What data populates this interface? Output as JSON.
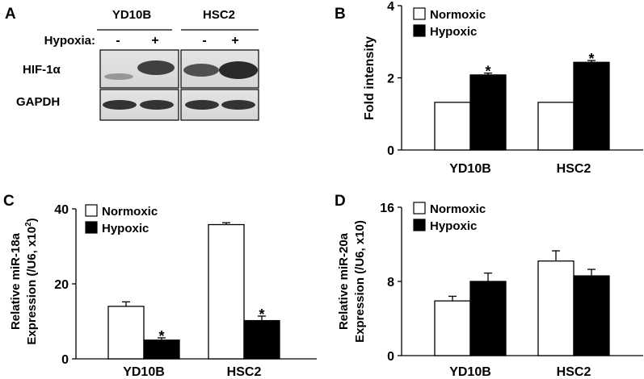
{
  "panel_letters": {
    "a": "A",
    "b": "B",
    "c": "C",
    "d": "D"
  },
  "blot": {
    "cell_lines": [
      "YD10B",
      "HSC2"
    ],
    "condition_label": "Hypoxia:",
    "lane_signs": [
      "-",
      "+",
      "-",
      "+"
    ],
    "proteins": [
      "HIF-1α",
      "GAPDH"
    ]
  },
  "chart_data": [
    {
      "panel": "B",
      "type": "bar",
      "categories": [
        "YD10B",
        "HSC2"
      ],
      "series": [
        {
          "name": "Normoxic",
          "values": [
            1.32,
            1.32
          ],
          "errors": [
            0,
            0
          ]
        },
        {
          "name": "Hypoxic",
          "values": [
            2.08,
            2.43
          ],
          "errors": [
            0.05,
            0.05
          ]
        }
      ],
      "significance": [
        [
          "",
          "*"
        ],
        [
          "",
          "*"
        ]
      ],
      "title": "",
      "xlabel": "",
      "ylabel": "Fold intensity",
      "ylim": [
        0,
        4
      ],
      "yticks": [
        "0",
        "2",
        "4"
      ],
      "legend_position": "top-left",
      "grid": false
    },
    {
      "panel": "C",
      "type": "bar",
      "categories": [
        "YD10B",
        "HSC2"
      ],
      "series": [
        {
          "name": "Normoxic",
          "values": [
            14.0,
            35.8
          ],
          "errors": [
            1.2,
            0.5
          ]
        },
        {
          "name": "Hypoxic",
          "values": [
            5.0,
            10.2
          ],
          "errors": [
            0.6,
            1.2
          ]
        }
      ],
      "significance": [
        [
          "",
          "*"
        ],
        [
          "",
          "*"
        ]
      ],
      "title": "",
      "xlabel": "",
      "ylabel_line1": "Relative miR-18a",
      "ylabel_line2": "Expression (/U6, x10",
      "ylabel_sup": "2",
      "ylabel_close": ")",
      "ylim": [
        0,
        40
      ],
      "yticks": [
        "0",
        "20",
        "40"
      ],
      "legend_position": "top-left",
      "grid": false
    },
    {
      "panel": "D",
      "type": "bar",
      "categories": [
        "YD10B",
        "HSC2"
      ],
      "series": [
        {
          "name": "Normoxic",
          "values": [
            5.9,
            10.2
          ],
          "errors": [
            0.5,
            1.1
          ]
        },
        {
          "name": "Hypoxic",
          "values": [
            8.0,
            8.6
          ],
          "errors": [
            0.9,
            0.7
          ]
        }
      ],
      "significance": [
        [
          "",
          ""
        ],
        [
          "",
          ""
        ]
      ],
      "title": "",
      "xlabel": "",
      "ylabel_line1": "Relative miR-20a",
      "ylabel_line2": "Expression (/U6, x10)",
      "ylim": [
        0,
        16
      ],
      "yticks": [
        "0",
        "8",
        "16"
      ],
      "legend_position": "top-left",
      "grid": false
    }
  ]
}
